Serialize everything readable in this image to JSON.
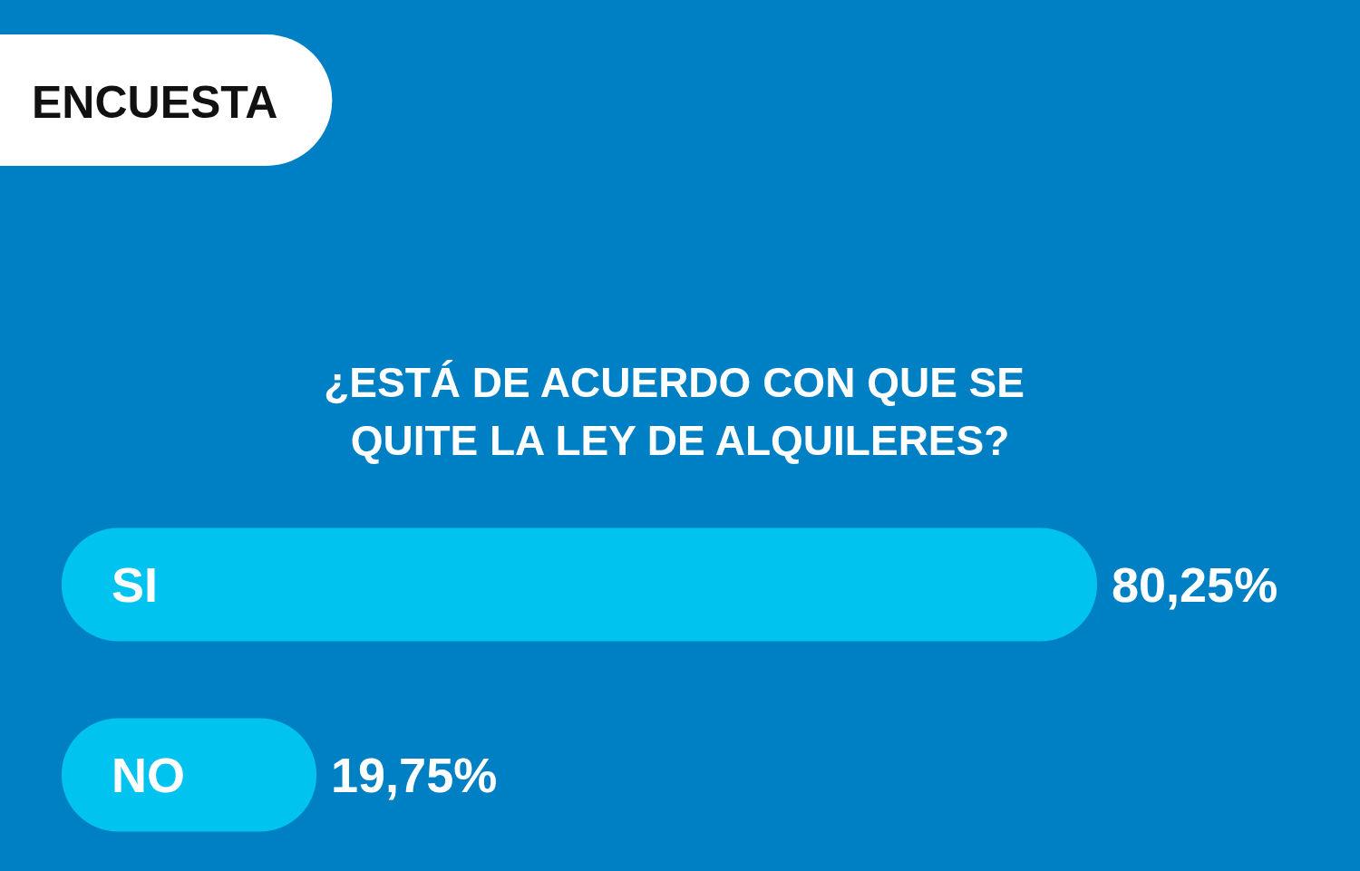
{
  "chart_data": {
    "type": "bar",
    "orientation": "horizontal",
    "title": "ENCUESTA",
    "subtitle": "¿ESTÁ DE ACUERDO CON QUE SE QUITE LA LEY DE ALQUILERES?",
    "categories": [
      "SI",
      "NO"
    ],
    "values": [
      80.25,
      19.75
    ],
    "value_labels": [
      "80,25%",
      "19,75%"
    ],
    "color": "#00c3f0"
  }
}
